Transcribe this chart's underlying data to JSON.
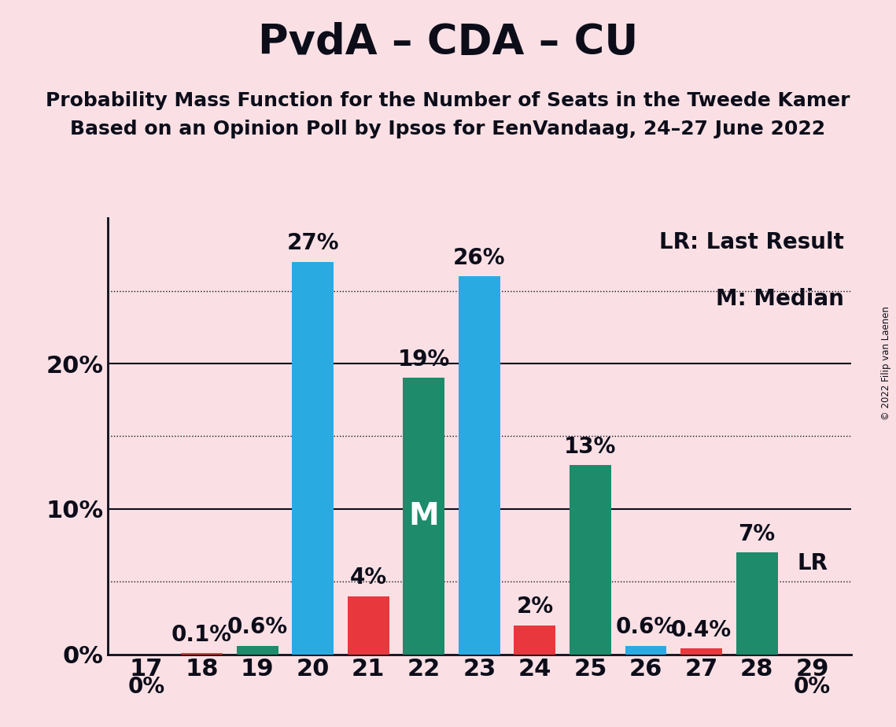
{
  "title": "PvdA – CDA – CU",
  "subtitle1": "Probability Mass Function for the Number of Seats in the Tweede Kamer",
  "subtitle2": "Based on an Opinion Poll by Ipsos for EenVandaag, 24–27 June 2022",
  "copyright": "© 2022 Filip van Laenen",
  "seats": [
    17,
    18,
    19,
    20,
    21,
    22,
    23,
    24,
    25,
    26,
    27,
    28,
    29
  ],
  "values": [
    0.0,
    0.1,
    0.6,
    27.0,
    4.0,
    19.0,
    26.0,
    2.0,
    13.0,
    0.6,
    0.4,
    7.0,
    0.0
  ],
  "labels": [
    "0%",
    "0.1%",
    "0.6%",
    "27%",
    "4%",
    "19%",
    "26%",
    "2%",
    "13%",
    "0.6%",
    "0.4%",
    "7%",
    "0%"
  ],
  "colors": [
    "#E8383D",
    "#E8383D",
    "#1E8B6A",
    "#29ABE2",
    "#E8383D",
    "#1E8B6A",
    "#29ABE2",
    "#E8383D",
    "#1E8B6A",
    "#29ABE2",
    "#E8383D",
    "#1E8B6A",
    "#29ABE2"
  ],
  "median_seat": 22,
  "lr_seat": 29,
  "lr_label": "LR",
  "median_label": "M",
  "background_color": "#FAE0E4",
  "ylim": [
    0,
    30
  ],
  "major_gridlines": [
    10,
    20
  ],
  "dotted_gridlines": [
    5,
    15,
    25
  ],
  "legend_lr": "LR: Last Result",
  "legend_m": "M: Median",
  "title_fontsize": 38,
  "subtitle_fontsize": 18,
  "tick_fontsize": 22,
  "bar_label_fontsize": 20,
  "legend_fontsize": 20,
  "median_label_fontsize": 28,
  "bar_width": 0.75
}
